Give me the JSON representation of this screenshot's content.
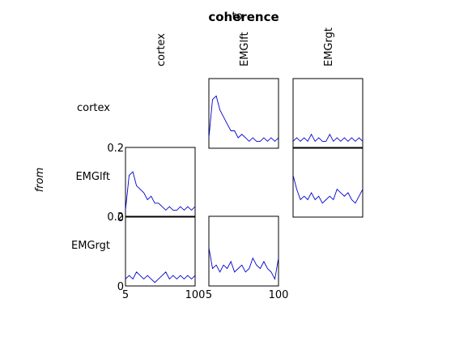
{
  "figure": {
    "title": "coherence",
    "top_label": "to",
    "side_label": "from"
  },
  "chart_data": {
    "type": "line",
    "title": "coherence",
    "ylabel": "from",
    "xlabel": "to",
    "channels": [
      "cortex",
      "EMGlft",
      "EMGrgt"
    ],
    "xlim": [
      5,
      100
    ],
    "ylim": [
      0,
      0.2
    ],
    "x_tick_labels": [
      "5",
      "100"
    ],
    "y_tick_labels": [
      "0.2",
      "0"
    ],
    "line_color": "#0000cc",
    "x": [
      5,
      10,
      15,
      20,
      25,
      30,
      35,
      40,
      45,
      50,
      55,
      60,
      65,
      70,
      75,
      80,
      85,
      90,
      95,
      100
    ],
    "panels": [
      {
        "from": "cortex",
        "to": "EMGlft",
        "y": [
          0.03,
          0.14,
          0.15,
          0.11,
          0.09,
          0.07,
          0.05,
          0.05,
          0.03,
          0.04,
          0.03,
          0.02,
          0.03,
          0.02,
          0.02,
          0.03,
          0.02,
          0.03,
          0.02,
          0.03
        ]
      },
      {
        "from": "cortex",
        "to": "EMGrgt",
        "y": [
          0.02,
          0.03,
          0.02,
          0.03,
          0.02,
          0.04,
          0.02,
          0.03,
          0.02,
          0.02,
          0.04,
          0.02,
          0.03,
          0.02,
          0.03,
          0.02,
          0.03,
          0.02,
          0.03,
          0.02
        ]
      },
      {
        "from": "EMGlft",
        "to": "cortex",
        "y": [
          0.02,
          0.12,
          0.13,
          0.09,
          0.08,
          0.07,
          0.05,
          0.06,
          0.04,
          0.04,
          0.03,
          0.02,
          0.03,
          0.02,
          0.02,
          0.03,
          0.02,
          0.03,
          0.02,
          0.03
        ]
      },
      {
        "from": "EMGlft",
        "to": "EMGrgt",
        "y": [
          0.12,
          0.08,
          0.05,
          0.06,
          0.05,
          0.07,
          0.05,
          0.06,
          0.04,
          0.05,
          0.06,
          0.05,
          0.08,
          0.07,
          0.06,
          0.07,
          0.05,
          0.04,
          0.06,
          0.08
        ]
      },
      {
        "from": "EMGrgt",
        "to": "cortex",
        "y": [
          0.02,
          0.03,
          0.02,
          0.04,
          0.03,
          0.02,
          0.03,
          0.02,
          0.01,
          0.02,
          0.03,
          0.04,
          0.02,
          0.03,
          0.02,
          0.03,
          0.02,
          0.03,
          0.02,
          0.03
        ]
      },
      {
        "from": "EMGrgt",
        "to": "EMGlft",
        "y": [
          0.11,
          0.05,
          0.06,
          0.04,
          0.06,
          0.05,
          0.07,
          0.04,
          0.05,
          0.06,
          0.04,
          0.05,
          0.08,
          0.06,
          0.05,
          0.07,
          0.05,
          0.04,
          0.02,
          0.08
        ]
      }
    ]
  }
}
